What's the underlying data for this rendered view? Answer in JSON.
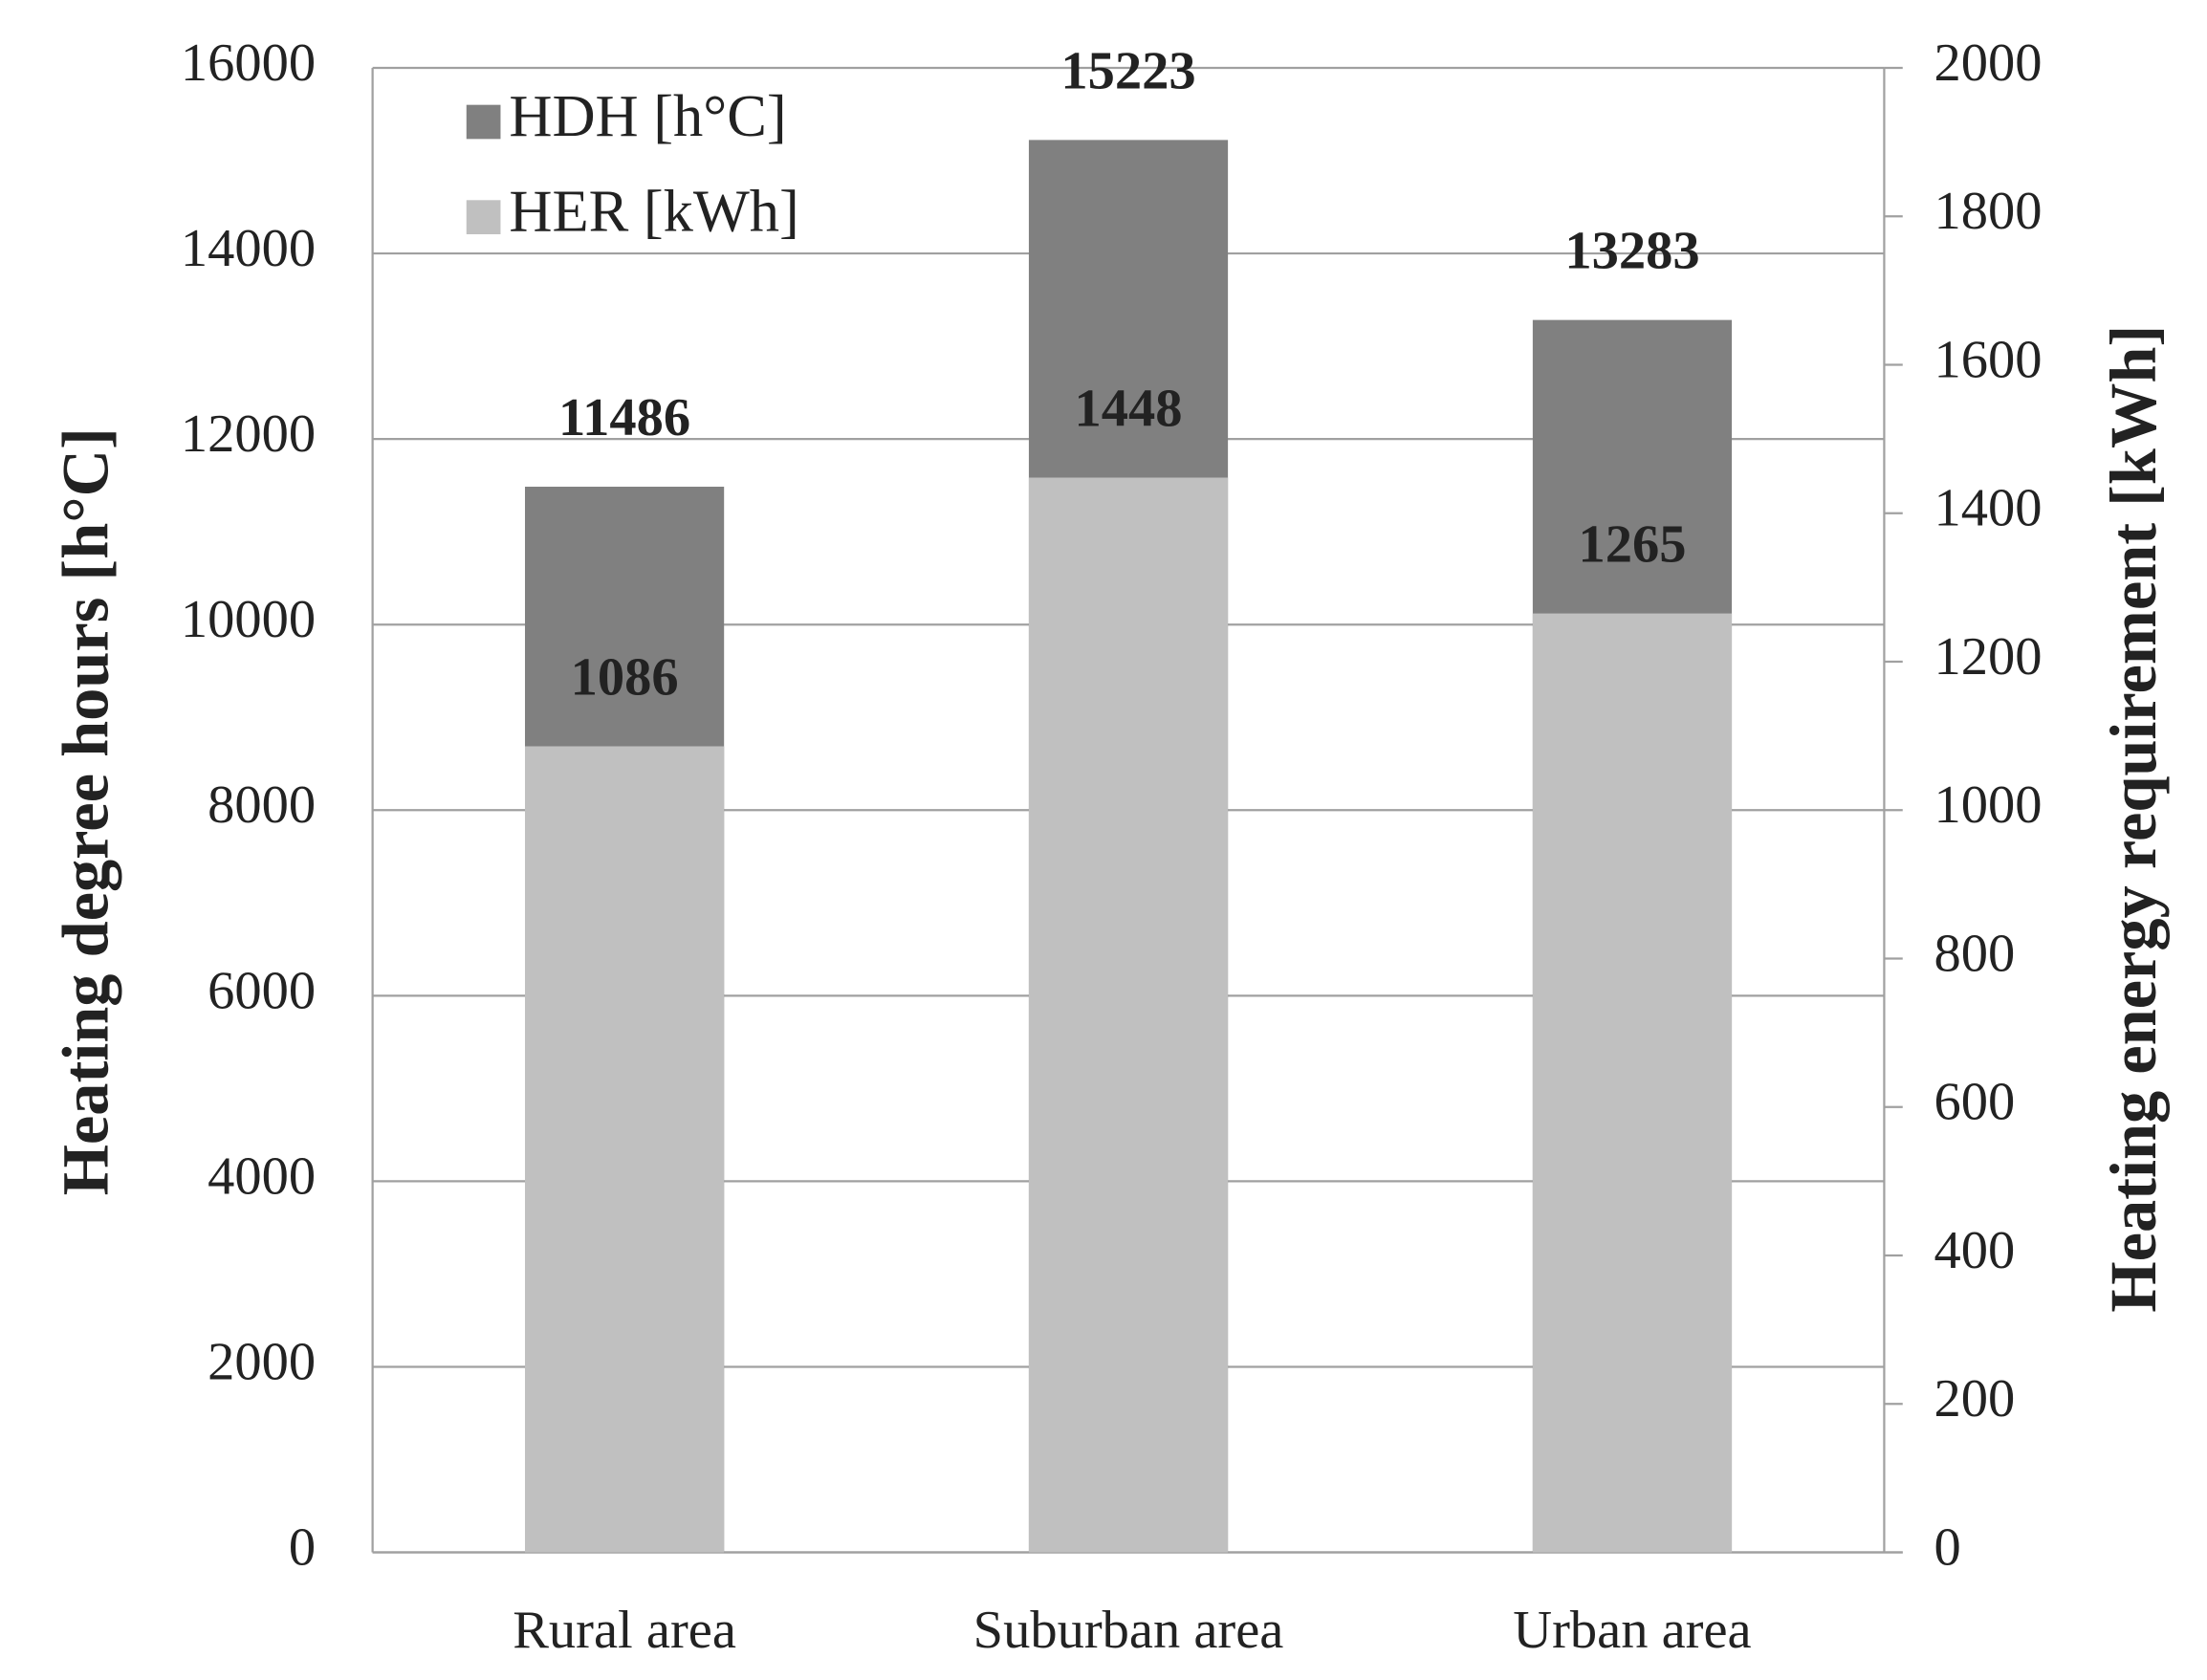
{
  "chart_data": {
    "type": "bar",
    "categories": [
      "Rural area",
      "Suburban area",
      "Urban area"
    ],
    "series": [
      {
        "name": "HDH [h°C]",
        "color": "#808080",
        "values": [
          11486,
          15223,
          13283
        ]
      },
      {
        "name": "HER [kWh]",
        "color": "#c0c0c0",
        "values": [
          1086,
          1448,
          1265
        ],
        "axis": "y2"
      }
    ],
    "ylabel": "Heating degree hours [h°C]",
    "y2label": "Heating energy requirement [kWh]",
    "ylim": [
      0,
      16000
    ],
    "yticks": [
      0,
      2000,
      4000,
      6000,
      8000,
      10000,
      12000,
      14000,
      16000
    ],
    "y2lim": [
      0,
      2000
    ],
    "y2ticks": [
      0,
      200,
      400,
      600,
      800,
      1000,
      1200,
      1400,
      1600,
      1800,
      2000
    ],
    "grid": true,
    "legend": "upper left"
  }
}
